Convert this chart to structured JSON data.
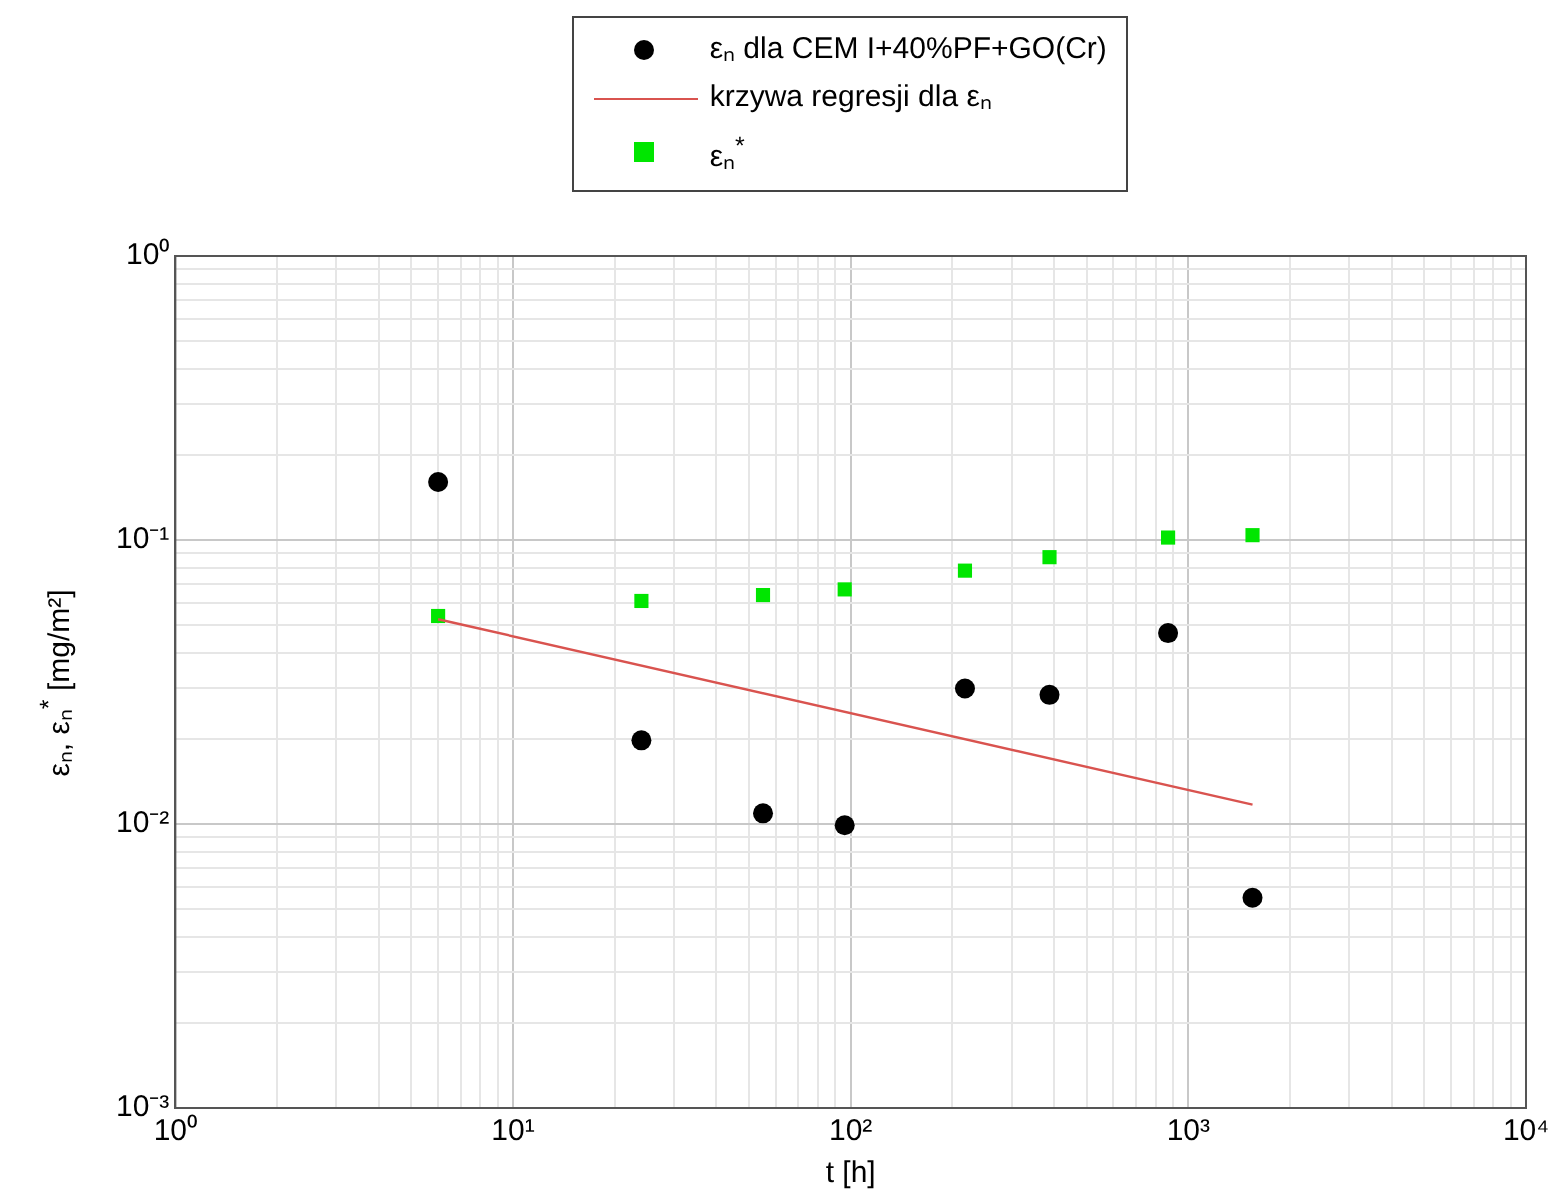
{
  "chart_data": {
    "type": "scatter",
    "xlabel": "t [h]",
    "ylabel": "εₙ, εₙ$^{*}$ [mg/m²]",
    "log": "xy",
    "grid": true,
    "legend": "top",
    "xlim": [
      1,
      10000
    ],
    "ylim": [
      0.001,
      1
    ],
    "xticks": [
      {
        "value": 1,
        "label": "10⁰"
      },
      {
        "value": 2,
        "label": null
      },
      {
        "value": 3,
        "label": null
      },
      {
        "value": 4,
        "label": null
      },
      {
        "value": 5,
        "label": null
      },
      {
        "value": 6,
        "label": null
      },
      {
        "value": 7,
        "label": null
      },
      {
        "value": 8,
        "label": null
      },
      {
        "value": 9,
        "label": null
      },
      {
        "value": 10,
        "label": "10¹"
      },
      {
        "value": 20,
        "label": null
      },
      {
        "value": 30,
        "label": null
      },
      {
        "value": 40,
        "label": null
      },
      {
        "value": 50,
        "label": null
      },
      {
        "value": 60,
        "label": null
      },
      {
        "value": 70,
        "label": null
      },
      {
        "value": 80,
        "label": null
      },
      {
        "value": 90,
        "label": null
      },
      {
        "value": 100,
        "label": "10²"
      },
      {
        "value": 200,
        "label": null
      },
      {
        "value": 300,
        "label": null
      },
      {
        "value": 400,
        "label": null
      },
      {
        "value": 500,
        "label": null
      },
      {
        "value": 600,
        "label": null
      },
      {
        "value": 700,
        "label": null
      },
      {
        "value": 800,
        "label": null
      },
      {
        "value": 900,
        "label": null
      },
      {
        "value": 1000,
        "label": "10³"
      },
      {
        "value": 2000,
        "label": null
      },
      {
        "value": 3000,
        "label": null
      },
      {
        "value": 4000,
        "label": null
      },
      {
        "value": 5000,
        "label": null
      },
      {
        "value": 6000,
        "label": null
      },
      {
        "value": 7000,
        "label": null
      },
      {
        "value": 8000,
        "label": null
      },
      {
        "value": 9000,
        "label": null
      },
      {
        "value": 10000,
        "label": "10⁴"
      }
    ],
    "yticks": [
      {
        "value": 0.001,
        "label": "10⁻³"
      },
      {
        "value": 0.002,
        "label": null
      },
      {
        "value": 0.003,
        "label": null
      },
      {
        "value": 0.004,
        "label": null
      },
      {
        "value": 0.005,
        "label": null
      },
      {
        "value": 0.006,
        "label": null
      },
      {
        "value": 0.007,
        "label": null
      },
      {
        "value": 0.008,
        "label": null
      },
      {
        "value": 0.009,
        "label": null
      },
      {
        "value": 0.01,
        "label": "10⁻²"
      },
      {
        "value": 0.02,
        "label": null
      },
      {
        "value": 0.03,
        "label": null
      },
      {
        "value": 0.04,
        "label": null
      },
      {
        "value": 0.05,
        "label": null
      },
      {
        "value": 0.06,
        "label": null
      },
      {
        "value": 0.07,
        "label": null
      },
      {
        "value": 0.08,
        "label": null
      },
      {
        "value": 0.09,
        "label": null
      },
      {
        "value": 0.1,
        "label": "10⁻¹"
      },
      {
        "value": 0.2,
        "label": null
      },
      {
        "value": 0.3,
        "label": null
      },
      {
        "value": 0.4,
        "label": null
      },
      {
        "value": 0.5,
        "label": null
      },
      {
        "value": 0.6,
        "label": null
      },
      {
        "value": 0.7,
        "label": null
      },
      {
        "value": 0.8,
        "label": null
      },
      {
        "value": 0.9,
        "label": null
      },
      {
        "value": 1,
        "label": "10⁰"
      }
    ],
    "series": [
      {
        "name": "εₙ dla CEM I+40%PF+GO(Cr)",
        "marker": "circle",
        "color": "#000000",
        "x": [
          6,
          24,
          55,
          96,
          218,
          388,
          871,
          1549
        ],
        "values": [
          0.16,
          0.0197,
          0.0109,
          0.0099,
          0.03,
          0.0285,
          0.047,
          0.0055
        ]
      },
      {
        "name": "krzywa regresji dla εₙ",
        "type": "line",
        "marker": "none",
        "color": "#d9534f",
        "x": [
          6,
          1549
        ],
        "values": [
          0.0526,
          0.0117
        ]
      },
      {
        "name": "εₙ$^{*}$",
        "marker": "square",
        "color": "#00e600",
        "x": [
          6,
          24,
          55,
          96,
          218,
          388,
          871,
          1549
        ],
        "values": [
          0.054,
          0.061,
          0.064,
          0.067,
          0.078,
          0.087,
          0.102,
          0.104
        ]
      }
    ]
  }
}
